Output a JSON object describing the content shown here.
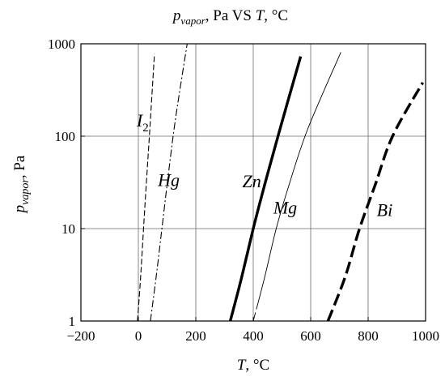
{
  "chart_data": {
    "type": "line",
    "title": {
      "y_symbol": "p",
      "y_subscript": "vapor",
      "y_unit": ", Pa VS ",
      "x_symbol": "T",
      "x_unit": ", °C"
    },
    "xlabel": {
      "symbol": "T",
      "unit": ", °C"
    },
    "ylabel": {
      "symbol": "p",
      "subscript": "vapor",
      "unit": ", Pa"
    },
    "x_range": [
      -200,
      1000
    ],
    "y_range": [
      1,
      1000
    ],
    "y_scale": "log",
    "x_ticks": [
      -200,
      0,
      200,
      400,
      600,
      800,
      1000
    ],
    "x_tick_labels": [
      "−200",
      "0",
      "200",
      "400",
      "600",
      "800",
      "1000"
    ],
    "y_ticks": [
      1,
      10,
      100,
      1000
    ],
    "y_tick_labels": [
      "1",
      "10",
      "100",
      "1000"
    ],
    "grid": true,
    "series": [
      {
        "name": "I₂",
        "label_main": "I",
        "label_sub": "2",
        "style": "dashed-thin",
        "points": [
          [
            -3,
            1
          ],
          [
            8,
            3
          ],
          [
            18,
            10
          ],
          [
            30,
            40
          ],
          [
            42,
            150
          ],
          [
            56,
            780
          ]
        ]
      },
      {
        "name": "Hg",
        "label_main": "Hg",
        "label_sub": "",
        "style": "dashdot-thin",
        "points": [
          [
            42,
            1
          ],
          [
            62,
            3
          ],
          [
            82,
            10
          ],
          [
            105,
            40
          ],
          [
            130,
            160
          ],
          [
            170,
            1000
          ]
        ]
      },
      {
        "name": "Zn",
        "label_main": "Zn",
        "label_sub": "",
        "style": "solid-thick",
        "points": [
          [
            320,
            1
          ],
          [
            360,
            3
          ],
          [
            400,
            10
          ],
          [
            440,
            30
          ],
          [
            490,
            110
          ],
          [
            565,
            730
          ]
        ]
      },
      {
        "name": "Mg",
        "label_main": "Mg",
        "label_sub": "",
        "style": "solid-dashed-thin",
        "points": [
          [
            400,
            1
          ],
          [
            440,
            3
          ],
          [
            480,
            10
          ],
          [
            525,
            30
          ],
          [
            590,
            120
          ],
          [
            705,
            810
          ]
        ]
      },
      {
        "name": "Bi",
        "label_main": "Bi",
        "label_sub": "",
        "style": "dashed-thick",
        "points": [
          [
            660,
            1
          ],
          [
            720,
            3
          ],
          [
            770,
            10
          ],
          [
            825,
            30
          ],
          [
            885,
            100
          ],
          [
            990,
            380
          ]
        ]
      }
    ]
  }
}
